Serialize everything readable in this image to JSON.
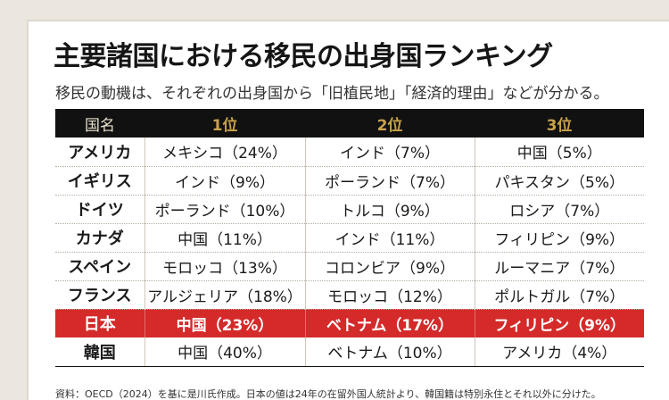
{
  "title": "主要諸国における移民の出身国ランキング",
  "subtitle": "移民の動機は、それぞれの出身国から「旧植民地」「経済的理由」などが分かる。",
  "table": {
    "headers": [
      "国名",
      "1位",
      "2位",
      "3位"
    ],
    "rows": [
      {
        "country": "アメリカ",
        "cells": [
          "メキシコ（24%）",
          "インド（7%）",
          "中国（5%）"
        ],
        "highlight": false
      },
      {
        "country": "イギリス",
        "cells": [
          "インド（9%）",
          "ポーランド（7%）",
          "パキスタン（5%）"
        ],
        "highlight": false
      },
      {
        "country": "ドイツ",
        "cells": [
          "ポーランド（10%）",
          "トルコ（9%）",
          "ロシア（7%）"
        ],
        "highlight": false
      },
      {
        "country": "カナダ",
        "cells": [
          "中国（11%）",
          "インド（11%）",
          "フィリピン（9%）"
        ],
        "highlight": false
      },
      {
        "country": "スペイン",
        "cells": [
          "モロッコ（13%）",
          "コロンビア（9%）",
          "ルーマニア（7%）"
        ],
        "highlight": false
      },
      {
        "country": "フランス",
        "cells": [
          "アルジェリア（18%）",
          "モロッコ（12%）",
          "ポルトガル（7%）"
        ],
        "highlight": false
      },
      {
        "country": "日本",
        "cells": [
          "中国（23%）",
          "ベトナム（17%）",
          "フィリピン（9%）"
        ],
        "highlight": true
      },
      {
        "country": "韓国",
        "cells": [
          "中国（40%）",
          "ベトナム（10%）",
          "アメリカ（4%）"
        ],
        "highlight": false
      }
    ]
  },
  "source": "資料：OECD（2024）を基に是川氏作成。日本の値は24年の在留外国人統計より、韓国籍は特別永住とそれ以外に分けた。",
  "colors": {
    "header_bg": "#111111",
    "header_text": "#c9a24a",
    "highlight_bg": "#d42a2a",
    "page_bg": "#ece7de"
  }
}
